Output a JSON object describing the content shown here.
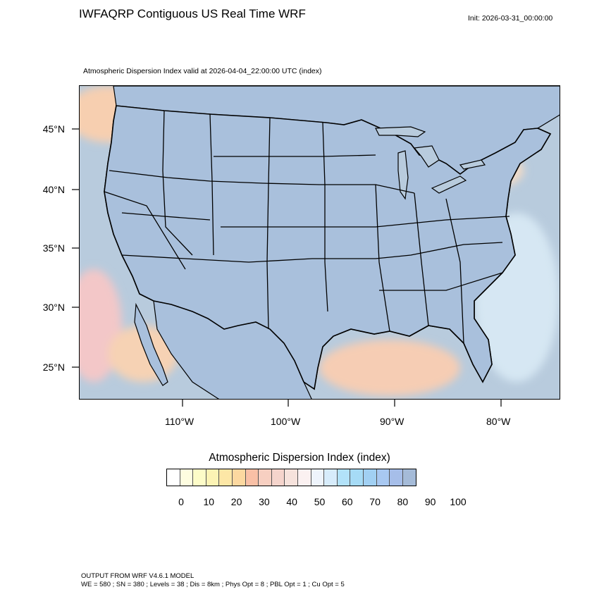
{
  "header": {
    "title": "IWFAQRP Contiguous US Real Time WRF",
    "init": "Init: 2026-03-31_00:00:00",
    "subtitle": "Atmospheric Dispersion Index valid at 2026-04-04_22:00:00 UTC   (index)"
  },
  "map": {
    "lat_labels": [
      "45°N",
      "40°N",
      "35°N",
      "30°N",
      "25°N"
    ],
    "lon_labels": [
      "110°W",
      "100°W",
      "90°W",
      "80°W"
    ],
    "colors": {
      "ocean": "#b8cbdd",
      "land_dominant": "#a9c0dc",
      "land_low": "#f7c9a8",
      "land_mid": "#f4d9c7",
      "boundary": "#000000"
    }
  },
  "colorbar": {
    "title": "Atmospheric Dispersion Index  (index)",
    "tick_labels": [
      "0",
      "10",
      "20",
      "30",
      "40",
      "50",
      "60",
      "70",
      "80",
      "90",
      "100"
    ],
    "colors": [
      "#ffffff",
      "#fefde0",
      "#fdfcc8",
      "#fcf3b4",
      "#fde7a6",
      "#fcd8a0",
      "#f9c0a6",
      "#f7cfc1",
      "#f5d4cc",
      "#f6e2dc",
      "#fbf1f1",
      "#eef4fc",
      "#d7ecfb",
      "#b2e2f9",
      "#a6dbf6",
      "#a1d0f3",
      "#a8c8f1",
      "#a6bee9",
      "#a5bbd8"
    ]
  },
  "footer": {
    "line1": "OUTPUT FROM WRF V4.6.1 MODEL",
    "line2": "WE = 580 ; SN = 380 ; Levels = 38 ; Dis = 8km ; Phys Opt = 8 ; PBL Opt = 1 ; Cu Opt = 5"
  }
}
